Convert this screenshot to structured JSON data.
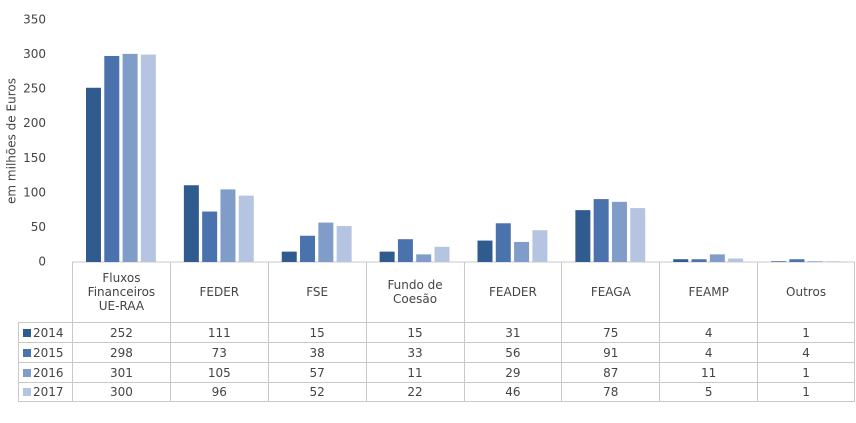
{
  "chart_data": {
    "type": "bar",
    "ylabel": "em milhões de Euros",
    "categories": [
      "Fluxos\nFinanceiros\nUE-RAA",
      "FEDER",
      "FSE",
      "Fundo de\nCoesão",
      "FEADER",
      "FEAGA",
      "FEAMP",
      "Outros"
    ],
    "series": [
      {
        "name": "2014",
        "color": "#2f5b8f",
        "values": [
          252,
          111,
          15,
          15,
          31,
          75,
          4,
          1
        ]
      },
      {
        "name": "2015",
        "color": "#4a72ad",
        "values": [
          298,
          73,
          38,
          33,
          56,
          91,
          4,
          4
        ]
      },
      {
        "name": "2016",
        "color": "#809cc9",
        "values": [
          301,
          105,
          57,
          11,
          29,
          87,
          11,
          1
        ]
      },
      {
        "name": "2017",
        "color": "#b5c5e1",
        "values": [
          300,
          96,
          52,
          22,
          46,
          78,
          5,
          1
        ]
      }
    ],
    "ylim": [
      0,
      350
    ],
    "yticks": [
      0,
      50,
      100,
      150,
      200,
      250,
      300,
      350
    ]
  }
}
